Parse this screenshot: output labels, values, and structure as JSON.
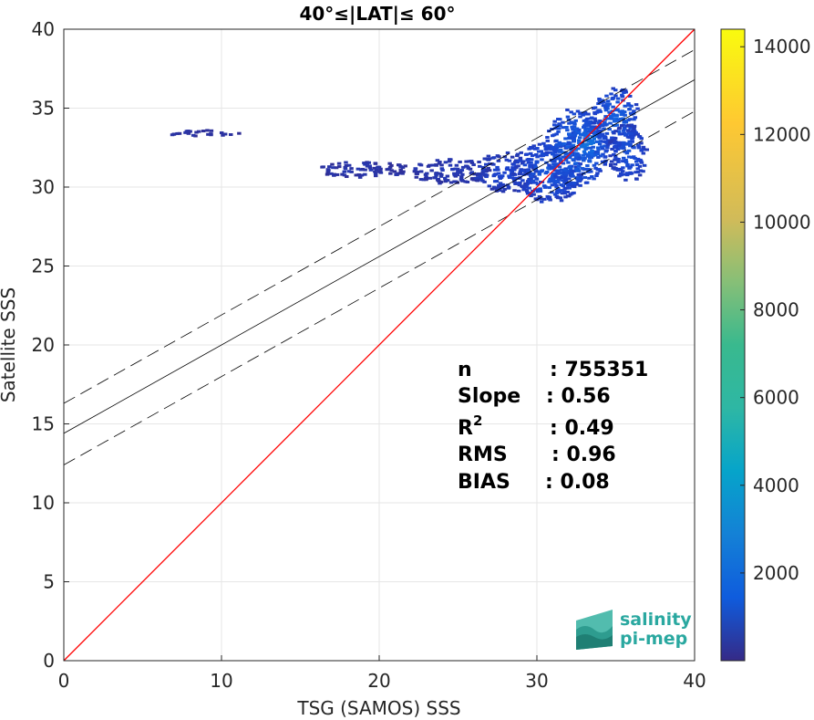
{
  "chart_data": {
    "type": "heatmap",
    "title": "40°≤|LAT|≤ 60°",
    "xlabel": "TSG (SAMOS) SSS",
    "ylabel": "Satellite SSS",
    "xlim": [
      0,
      40
    ],
    "ylim": [
      0,
      40
    ],
    "xticks": [
      "0",
      "10",
      "20",
      "30",
      "40"
    ],
    "yticks": [
      "0",
      "5",
      "10",
      "15",
      "20",
      "25",
      "30",
      "35",
      "40"
    ],
    "grid": true,
    "lines": {
      "identity": {
        "slope": 1,
        "intercept": 0,
        "color": "#ff0000"
      },
      "fit": {
        "slope": 0.56,
        "intercept": 14.4,
        "color": "#000000"
      },
      "fit_upper": {
        "slope": 0.56,
        "intercept": 16.3,
        "dashed": true
      },
      "fit_lower": {
        "slope": 0.56,
        "intercept": 12.4,
        "dashed": true
      }
    },
    "stats": [
      {
        "label": "n",
        "value": ": 755351"
      },
      {
        "label": "Slope",
        "value": ": 0.56"
      },
      {
        "label": "R",
        "sup": "2",
        "value": ": 0.49"
      },
      {
        "label": "RMS",
        "value": ": 0.96"
      },
      {
        "label": "BIAS",
        "value": ": 0.08"
      }
    ],
    "colorbar": {
      "range": [
        0,
        14400
      ],
      "ticks": [
        "2000",
        "4000",
        "6000",
        "8000",
        "10000",
        "12000",
        "14000"
      ],
      "colormap": "parula"
    },
    "density_regions": [
      {
        "x": [
          6.5,
          11.2
        ],
        "y": [
          33.2,
          33.6
        ],
        "level": 0.08
      },
      {
        "x": [
          16,
          22
        ],
        "y": [
          30.6,
          31.6
        ],
        "level": 0.12
      },
      {
        "x": [
          22,
          27
        ],
        "y": [
          30.2,
          31.8
        ],
        "level": 0.18
      },
      {
        "x": [
          26,
          30
        ],
        "y": [
          29.6,
          32.2
        ],
        "level": 0.3
      },
      {
        "x": [
          28.5,
          33
        ],
        "y": [
          29,
          33
        ],
        "level": 0.45
      },
      {
        "x": [
          30.5,
          34.5
        ],
        "y": [
          30,
          35
        ],
        "level": 0.6
      },
      {
        "x": [
          32,
          34.5
        ],
        "y": [
          31.5,
          34
        ],
        "level": 0.75
      },
      {
        "x": [
          33.5,
          36.5
        ],
        "y": [
          32.5,
          36.3
        ],
        "level": 0.55
      },
      {
        "x": [
          34.5,
          37
        ],
        "y": [
          30.3,
          34
        ],
        "level": 0.4
      }
    ]
  },
  "logo": {
    "line1": "salinity",
    "line2": "pi-mep"
  },
  "colors": {
    "identity": "#ff0000",
    "fit": "#000000",
    "grid": "#e6e6e6",
    "axis": "#262626",
    "logo": "#2aa8a0"
  }
}
